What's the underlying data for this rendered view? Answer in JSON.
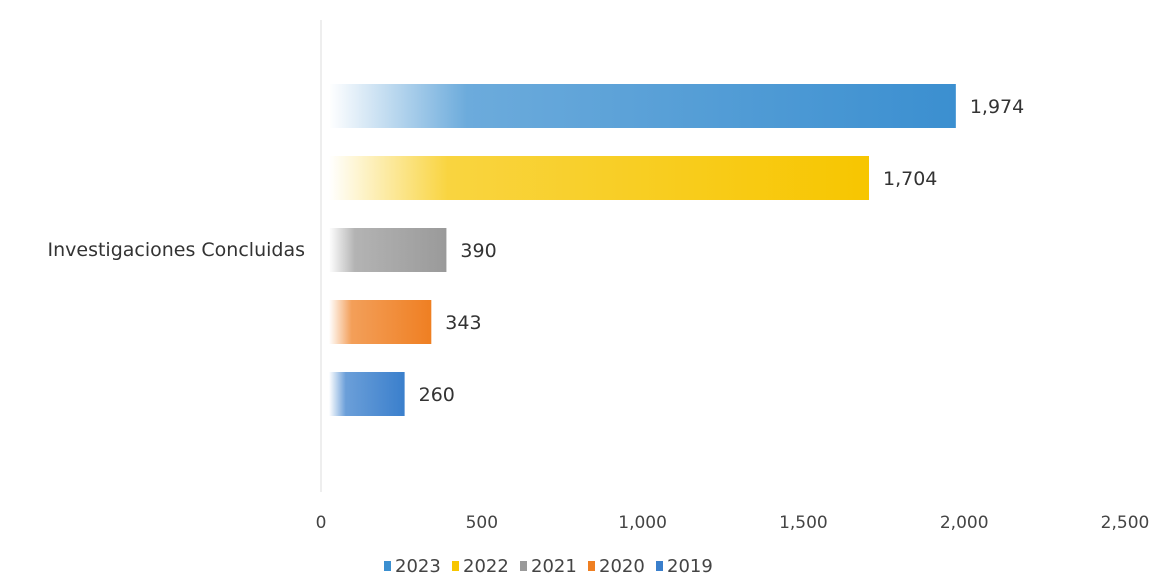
{
  "chart_data": {
    "type": "bar",
    "orientation": "horizontal",
    "title": "",
    "xlabel": "",
    "ylabel": "",
    "categories": [
      "Investigaciones Concluidas"
    ],
    "series": [
      {
        "name": "2023",
        "values": [
          1974
        ],
        "value_label": "1,974",
        "color": "#3b8fd0"
      },
      {
        "name": "2022",
        "values": [
          1704
        ],
        "value_label": "1,704",
        "color": "#f7c600"
      },
      {
        "name": "2021",
        "values": [
          390
        ],
        "value_label": "390",
        "color": "#9a9a9a"
      },
      {
        "name": "2020",
        "values": [
          343
        ],
        "value_label": "343",
        "color": "#ef7f22"
      },
      {
        "name": "2019",
        "values": [
          260
        ],
        "value_label": "260",
        "color": "#3a7fcc"
      }
    ],
    "xlim": [
      0,
      2500
    ],
    "x_ticks": [
      0,
      500,
      1000,
      1500,
      2000,
      2500
    ],
    "x_tick_labels": [
      "0",
      "500",
      "1,000",
      "1,500",
      "2,000",
      "2,500"
    ],
    "grid": false,
    "legend_position": "bottom"
  }
}
